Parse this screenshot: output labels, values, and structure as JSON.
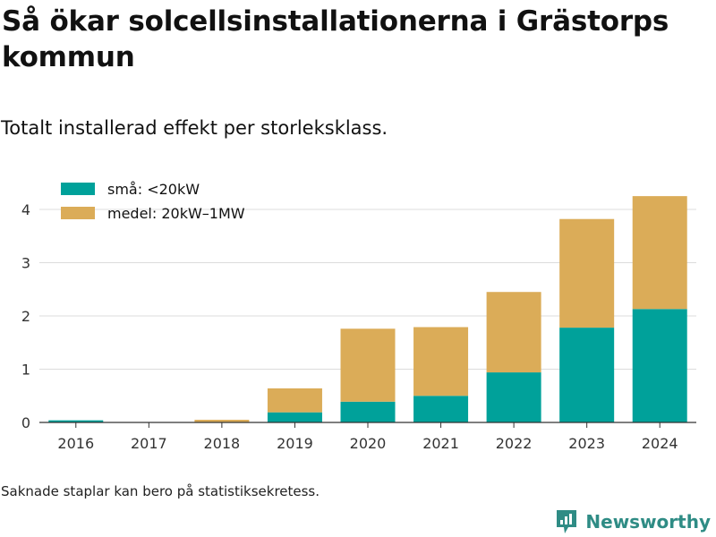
{
  "title": "Så ökar solcellsinstallationerna i Grästorps kommun",
  "subtitle": "Totalt installerad effekt per storleksklass.",
  "footnote": "Saknade staplar kan bero på statistiksekretess.",
  "brand": "Newsworthy",
  "chart_data": {
    "type": "bar",
    "stacked": true,
    "categories": [
      "2016",
      "2017",
      "2018",
      "2019",
      "2020",
      "2021",
      "2022",
      "2023",
      "2024"
    ],
    "series": [
      {
        "name": "små: <20kW",
        "color": "#00a19a",
        "values": [
          0.04,
          0,
          0,
          0.19,
          0.39,
          0.5,
          0.94,
          1.78,
          2.13
        ]
      },
      {
        "name": "medel: 20kW–1MW",
        "color": "#dbac58",
        "values": [
          0,
          0,
          0.05,
          0.45,
          1.37,
          1.29,
          1.51,
          2.04,
          2.12
        ]
      }
    ],
    "yticks": [
      "0",
      "1",
      "2",
      "3",
      "4"
    ],
    "ylim": [
      0,
      4.5
    ],
    "grid": true,
    "legend": "top-left"
  }
}
